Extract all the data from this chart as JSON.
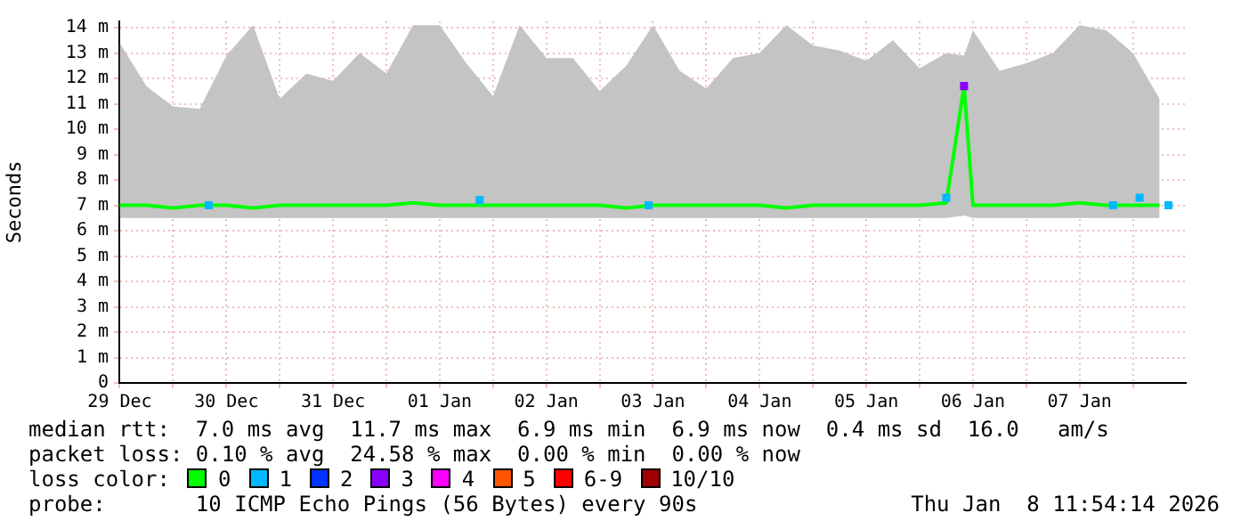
{
  "chart_data": {
    "type": "line",
    "ylabel": "Seconds",
    "legend_title": "loss color:",
    "legend": "bottom",
    "grid": true,
    "xlim": [
      "2025-12-29T11:54",
      "2026-01-08T11:54"
    ],
    "xticks": [
      {
        "value": "2025-12-29T12:00",
        "label": "29 Dec"
      },
      {
        "value": "2025-12-30T00:00",
        "label": null
      },
      {
        "value": "2025-12-30T12:00",
        "label": "30 Dec"
      },
      {
        "value": "2025-12-31T00:00",
        "label": null
      },
      {
        "value": "2025-12-31T12:00",
        "label": "31 Dec"
      },
      {
        "value": "2026-01-01T00:00",
        "label": null
      },
      {
        "value": "2026-01-01T12:00",
        "label": "01 Jan"
      },
      {
        "value": "2026-01-02T00:00",
        "label": null
      },
      {
        "value": "2026-01-02T12:00",
        "label": "02 Jan"
      },
      {
        "value": "2026-01-03T00:00",
        "label": null
      },
      {
        "value": "2026-01-03T12:00",
        "label": "03 Jan"
      },
      {
        "value": "2026-01-04T00:00",
        "label": null
      },
      {
        "value": "2026-01-04T12:00",
        "label": "04 Jan"
      },
      {
        "value": "2026-01-05T00:00",
        "label": null
      },
      {
        "value": "2026-01-05T12:00",
        "label": "05 Jan"
      },
      {
        "value": "2026-01-06T00:00",
        "label": null
      },
      {
        "value": "2026-01-06T12:00",
        "label": "06 Jan"
      },
      {
        "value": "2026-01-07T00:00",
        "label": null
      },
      {
        "value": "2026-01-07T12:00",
        "label": "07 Jan"
      },
      {
        "value": "2026-01-08T00:00",
        "label": null
      }
    ],
    "ylim": [
      0,
      14.25
    ],
    "yticks": [
      0,
      {
        "value": 1,
        "label": "1 m"
      },
      {
        "value": 2,
        "label": "2 m"
      },
      {
        "value": 3,
        "label": "3 m"
      },
      {
        "value": 4,
        "label": "4 m"
      },
      {
        "value": 5,
        "label": "5 m"
      },
      {
        "value": 6,
        "label": "6 m"
      },
      {
        "value": 7,
        "label": "7 m"
      },
      {
        "value": 8,
        "label": "8 m"
      },
      {
        "value": 9,
        "label": "9 m"
      },
      {
        "value": 10,
        "label": "10 m"
      },
      {
        "value": 11,
        "label": "11 m"
      },
      {
        "value": 12,
        "label": "12 m"
      },
      {
        "value": 13,
        "label": "13 m"
      },
      {
        "value": 14,
        "label": "14 m"
      }
    ],
    "series": [
      {
        "name": "0",
        "color": "#00ff00",
        "x": [
          "2025-12-29T12:00",
          "2025-12-29T18:00",
          "2025-12-30T00:00",
          "2025-12-30T06:00",
          "2025-12-30T12:00",
          "2025-12-30T18:00",
          "2025-12-31T00:00",
          "2025-12-31T06:00",
          "2025-12-31T12:00",
          "2025-12-31T18:00",
          "2026-01-01T00:00",
          "2026-01-01T06:00",
          "2026-01-01T12:00",
          "2026-01-01T18:00",
          "2026-01-02T00:00",
          "2026-01-02T06:00",
          "2026-01-02T12:00",
          "2026-01-02T18:00",
          "2026-01-03T00:00",
          "2026-01-03T06:00",
          "2026-01-03T12:00",
          "2026-01-03T18:00",
          "2026-01-04T00:00",
          "2026-01-04T06:00",
          "2026-01-04T12:00",
          "2026-01-04T18:00",
          "2026-01-05T00:00",
          "2026-01-05T06:00",
          "2026-01-05T12:00",
          "2026-01-05T18:00",
          "2026-01-06T00:00",
          "2026-01-06T06:00",
          "2026-01-06T10:00",
          "2026-01-06T12:00",
          "2026-01-06T18:00",
          "2026-01-07T00:00",
          "2026-01-07T06:00",
          "2026-01-07T12:00",
          "2026-01-07T18:00",
          "2026-01-08T00:00",
          "2026-01-08T06:00"
        ],
        "values": [
          7.0,
          7.0,
          6.9,
          7.0,
          7.0,
          6.9,
          7.0,
          7.0,
          7.0,
          7.0,
          7.0,
          7.1,
          7.0,
          7.0,
          7.0,
          7.0,
          7.0,
          7.0,
          7.0,
          6.9,
          7.0,
          7.0,
          7.0,
          7.0,
          7.0,
          6.9,
          7.0,
          7.0,
          7.0,
          7.0,
          7.0,
          7.1,
          11.7,
          7.0,
          7.0,
          7.0,
          7.0,
          7.1,
          7.0,
          7.0,
          7.0
        ],
        "lower": [
          6.5,
          6.5,
          6.5,
          6.5,
          6.5,
          6.5,
          6.5,
          6.5,
          6.5,
          6.5,
          6.5,
          6.5,
          6.5,
          6.5,
          6.5,
          6.5,
          6.5,
          6.5,
          6.5,
          6.5,
          6.5,
          6.5,
          6.5,
          6.5,
          6.5,
          6.5,
          6.5,
          6.5,
          6.5,
          6.5,
          6.5,
          6.5,
          6.6,
          6.5,
          6.5,
          6.5,
          6.5,
          6.5,
          6.5,
          6.5,
          6.5
        ],
        "upper": [
          13.4,
          11.7,
          10.9,
          10.8,
          12.9,
          14.1,
          11.2,
          12.2,
          11.9,
          13.0,
          12.2,
          14.1,
          14.1,
          12.6,
          11.3,
          14.1,
          12.8,
          12.8,
          11.5,
          12.5,
          14.1,
          12.3,
          11.6,
          12.8,
          13.0,
          14.1,
          13.3,
          13.1,
          12.7,
          13.5,
          12.4,
          13.0,
          12.9,
          13.9,
          12.3,
          12.6,
          13.0,
          14.1,
          13.9,
          13.0,
          11.2
        ]
      },
      {
        "name": "1",
        "color": "#00b8ff",
        "type": "scatter",
        "x": [
          "2025-12-30T08:00",
          "2026-01-01T21:00",
          "2026-01-03T11:00",
          "2026-01-06T06:00",
          "2026-01-07T19:30",
          "2026-01-08T01:30",
          "2026-01-08T08:00"
        ],
        "values": [
          7.0,
          7.2,
          7.0,
          7.3,
          7.0,
          7.3,
          7.0
        ]
      },
      {
        "name": "2",
        "color": "#0033ff",
        "type": "scatter"
      },
      {
        "name": "3",
        "color": "#8a00ff",
        "type": "scatter",
        "x": [
          "2026-01-06T10:00"
        ],
        "values": [
          11.7
        ]
      },
      {
        "name": "4",
        "color": "#ff00ff",
        "type": "scatter"
      },
      {
        "name": "5",
        "color": "#ff5500",
        "type": "scatter"
      },
      {
        "name": "6-9",
        "color": "#ff0000",
        "type": "scatter"
      },
      {
        "name": "10/10",
        "color": "#a00000",
        "type": "scatter"
      }
    ],
    "annotations": [
      "median rtt:  7.0 ms avg  11.7 ms max  6.9 ms min  6.9 ms now  0.4 ms sd  16.0   am/s",
      "packet loss: 0.10 % avg  24.58 % max  0.00 % min  0.00 % now",
      "probe:       10 ICMP Echo Pings (56 Bytes) every 90s",
      "Thu Jan  8 11:54:14 2026"
    ]
  }
}
